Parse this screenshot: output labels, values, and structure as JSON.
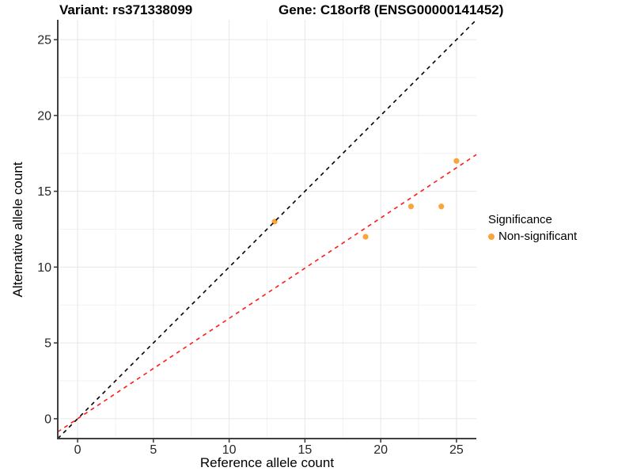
{
  "chart_data": {
    "type": "scatter",
    "titles": {
      "left": "Variant: rs371338099",
      "right": "Gene: C18orf8 (ENSG00000141452)"
    },
    "xlabel": "Reference allele count",
    "ylabel": "Alternative allele count",
    "xlim": [
      -1.31,
      26.31
    ],
    "ylim": [
      -1.31,
      26.31
    ],
    "x_ticks": [
      0,
      5,
      10,
      15,
      20,
      25
    ],
    "y_ticks": [
      0,
      5,
      10,
      15,
      20,
      25
    ],
    "x_minor_ticks": [
      2.5,
      7.5,
      12.5,
      17.5,
      22.5
    ],
    "y_minor_ticks": [
      2.5,
      7.5,
      12.5,
      17.5,
      22.5
    ],
    "grid": "on",
    "legend_position": "right",
    "legend": {
      "title": "Significance",
      "items": [
        {
          "label": "Non-significant",
          "color": "#FAA43A",
          "marker": "circle-icon"
        }
      ]
    },
    "series": [
      {
        "name": "Non-significant",
        "color": "#FAA43A",
        "points": [
          {
            "x": 13,
            "y": 13
          },
          {
            "x": 19,
            "y": 12
          },
          {
            "x": 22,
            "y": 14
          },
          {
            "x": 24,
            "y": 14
          },
          {
            "x": 25,
            "y": 17
          }
        ]
      }
    ],
    "reference_lines": [
      {
        "name": "identity-line",
        "slope": 1.0,
        "intercept": 0,
        "color": "#000000",
        "style": "dashed"
      },
      {
        "name": "fit-line",
        "slope": 0.662,
        "intercept": 0,
        "color": "#FF1A1A",
        "style": "dashed"
      }
    ],
    "style": {
      "grid_major_color": "#E6E6E6",
      "grid_minor_color": "#F2F2F2",
      "axis_line_color": "#404040",
      "tick_color": "#333333",
      "tick_label_color": "#262626",
      "point_color": "#FAA43A"
    }
  }
}
